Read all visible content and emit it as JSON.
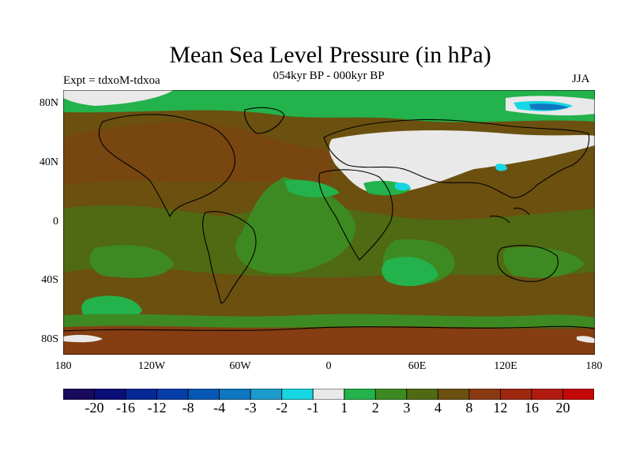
{
  "header": {
    "title": "Mean Sea Level Pressure (in hPa)",
    "subtitle": "054kyr BP - 000kyr BP",
    "left_label": "Expt = tdxoM-tdxoa",
    "right_label": "JJA"
  },
  "axes": {
    "y_ticks": [
      "80N",
      "40N",
      "0",
      "40S",
      "80S"
    ],
    "x_ticks": [
      "180",
      "120W",
      "60W",
      "0",
      "60E",
      "120E",
      "180"
    ]
  },
  "colorbar": {
    "colors": [
      "#1a0a5e",
      "#0a0f78",
      "#062896",
      "#053ea8",
      "#0558b4",
      "#0f77c2",
      "#1c9ccc",
      "#16d6e2",
      "#e9e9e9",
      "#23b24b",
      "#3e8a22",
      "#4f6a12",
      "#6b5010",
      "#8a3a12",
      "#9e2810",
      "#b21a10",
      "#c40808"
    ],
    "labels": [
      "-20",
      "-16",
      "-12",
      "-8",
      "-4",
      "-3",
      "-2",
      "-1",
      "1",
      "2",
      "3",
      "4",
      "8",
      "12",
      "16",
      "20"
    ]
  }
}
